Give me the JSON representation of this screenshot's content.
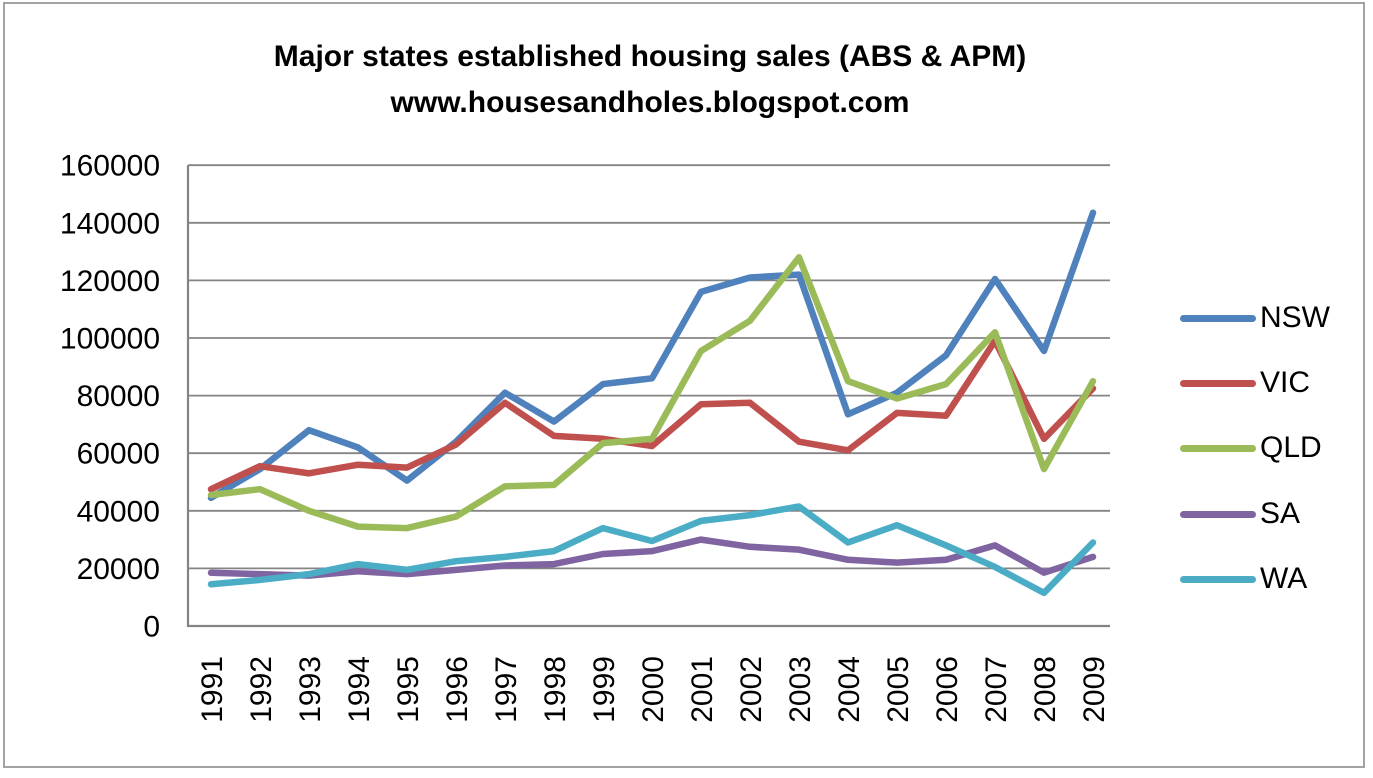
{
  "title": {
    "line1": "Major states established housing sales (ABS & APM)",
    "line2": "www.housesandholes.blogspot.com"
  },
  "chart_data": {
    "type": "line",
    "categories": [
      "1991",
      "1992",
      "1993",
      "1994",
      "1995",
      "1996",
      "1997",
      "1998",
      "1999",
      "2000",
      "2001",
      "2002",
      "2003",
      "2004",
      "2005",
      "2006",
      "2007",
      "2008",
      "2009"
    ],
    "series": [
      {
        "name": "NSW",
        "color": "#4F81BD",
        "values": [
          44500,
          54500,
          68000,
          62000,
          50500,
          64000,
          81000,
          71000,
          84000,
          86000,
          116000,
          121000,
          122000,
          73500,
          81000,
          94000,
          120500,
          95500,
          143500
        ]
      },
      {
        "name": "VIC",
        "color": "#C0504D",
        "values": [
          47500,
          55500,
          53000,
          56000,
          55000,
          63000,
          77500,
          66000,
          65000,
          62500,
          77000,
          77500,
          64000,
          61000,
          74000,
          73000,
          99000,
          65000,
          82500
        ]
      },
      {
        "name": "QLD",
        "color": "#9BBB59",
        "values": [
          45500,
          47500,
          40000,
          34500,
          34000,
          38000,
          48500,
          49000,
          63500,
          65000,
          95500,
          106000,
          128000,
          85000,
          79000,
          84000,
          102000,
          54500,
          85000
        ]
      },
      {
        "name": "SA",
        "color": "#8064A2",
        "values": [
          18500,
          18000,
          17500,
          19000,
          18000,
          19500,
          21000,
          21500,
          25000,
          26000,
          30000,
          27500,
          26500,
          23000,
          22000,
          23000,
          28000,
          18500,
          24000
        ]
      },
      {
        "name": "WA",
        "color": "#4BACC6",
        "values": [
          14500,
          16000,
          18000,
          21500,
          19500,
          22500,
          24000,
          26000,
          34000,
          29500,
          36500,
          38500,
          41500,
          29000,
          35000,
          28000,
          20500,
          11500,
          29000
        ]
      }
    ],
    "title": "Major states established housing sales (ABS & APM)",
    "subtitle": "www.housesandholes.blogspot.com",
    "xlabel": "",
    "ylabel": "",
    "ylim": [
      0,
      160000
    ],
    "ytick_interval": 20000,
    "ytick_labels": [
      "0",
      "20000",
      "40000",
      "60000",
      "80000",
      "100000",
      "120000",
      "140000",
      "160000"
    ],
    "grid": "horizontal",
    "legend_position": "right",
    "x_labels_rotated_degrees": 90
  },
  "colors": {
    "background": "#FFFFFF",
    "gridline": "#848484",
    "axis": "#848484",
    "outer_border": "#A3A3A3",
    "text": "#000000"
  }
}
